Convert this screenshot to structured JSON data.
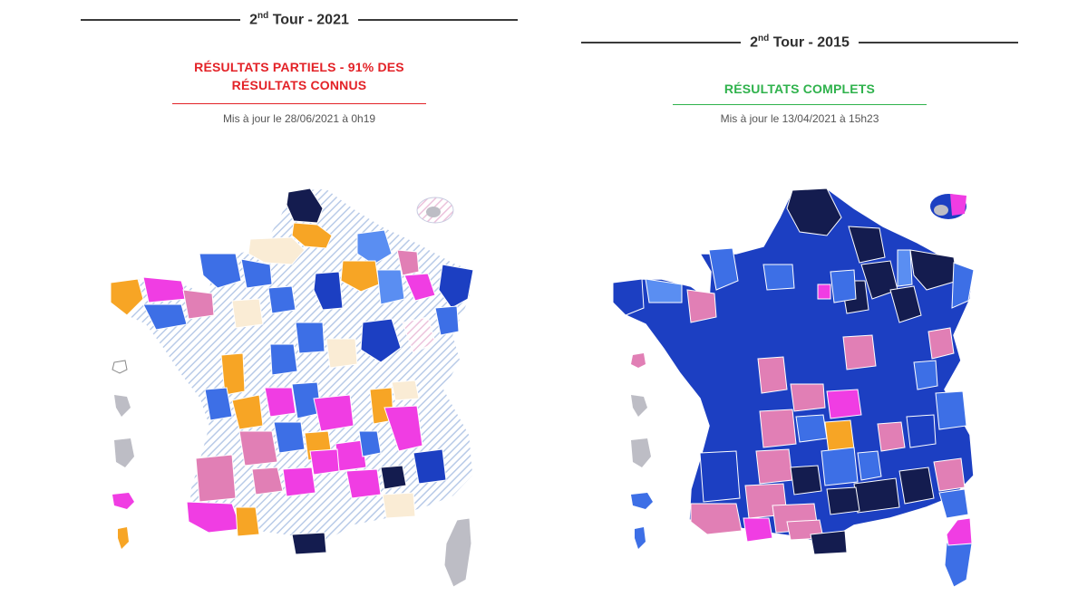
{
  "left": {
    "round": "2",
    "round_sup": "nd",
    "round_rest": " Tour - 2021",
    "status_line1": "RÉSULTATS PARTIELS - 91% DES",
    "status_line2": "RÉSULTATS CONNUS",
    "updated": "Mis à jour le 28/06/2021 à 0h19",
    "status_color": "#e32227"
  },
  "right": {
    "round": "2",
    "round_sup": "nd",
    "round_rest": " Tour - 2015",
    "status_line1": "RÉSULTATS COMPLETS",
    "updated": "Mis à jour le 13/04/2021 à 15h23",
    "status_color": "#2fb24c"
  },
  "colors": {
    "navy": "#141c4f",
    "dark_blue": "#1c3fc2",
    "blue": "#3d6fe6",
    "light_blue": "#5a8ef2",
    "magenta": "#f03de3",
    "pink": "#e17fb5",
    "orange": "#f7a525",
    "cream": "#faecd5",
    "hatch_blue": "#b9cbe8",
    "hatch_pink": "#ecc3dc",
    "grey": "#bdbdc5"
  }
}
